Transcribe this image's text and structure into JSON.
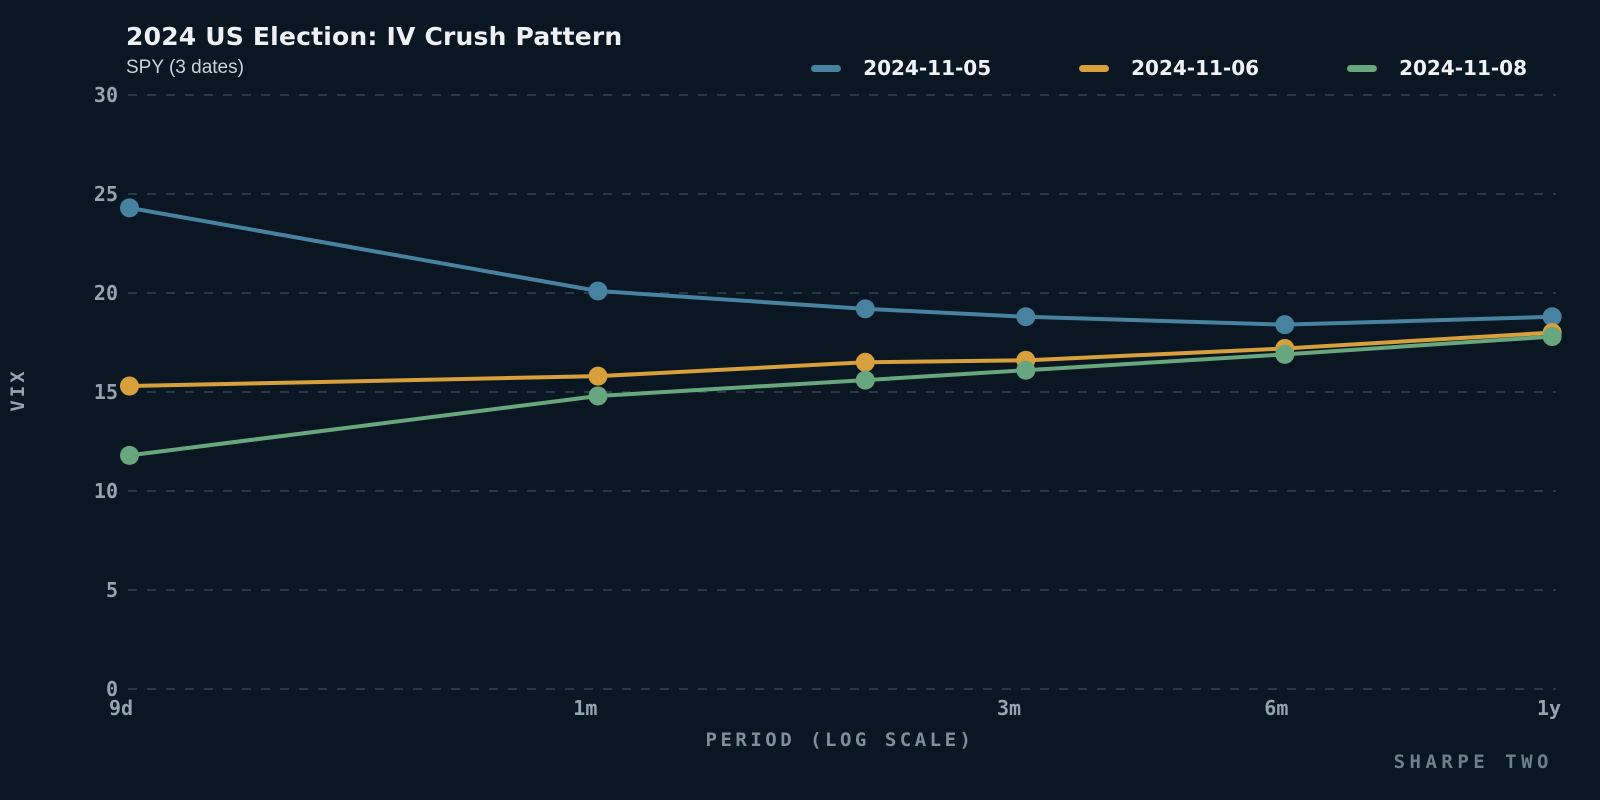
{
  "header": {
    "title": "2024 US Election: IV Crush Pattern",
    "subtitle": "SPY (3 dates)"
  },
  "watermark": "SHARPE TWO",
  "colors": {
    "background": "#0a1621",
    "grid": "#263a47",
    "tick_label": "#94a3ae",
    "axis_title": "#7f8f9a",
    "watermark": "#6e808b"
  },
  "chart_data": {
    "type": "line",
    "title": "2024 US Election: IV Crush Pattern",
    "subtitle": "SPY (3 dates)",
    "xlabel": "PERIOD (LOG SCALE)",
    "ylabel": "VIX",
    "x_scale": "log",
    "x_unit": "days-to-expiration",
    "x_days": [
      9.2,
      31,
      62,
      94,
      184,
      368
    ],
    "x_ticks": [
      {
        "days": 9,
        "label": "9d"
      },
      {
        "days": 30,
        "label": "1m"
      },
      {
        "days": 90,
        "label": "3m"
      },
      {
        "days": 180,
        "label": "6m"
      },
      {
        "days": 365,
        "label": "1y"
      }
    ],
    "ylim": [
      0,
      30
    ],
    "y_ticks": [
      0,
      5,
      10,
      15,
      20,
      25,
      30
    ],
    "grid": true,
    "legend_position": "top-right",
    "series": [
      {
        "name": "2024-11-05",
        "color": "#4783a0",
        "values": [
          24.3,
          20.1,
          19.2,
          18.8,
          18.4,
          18.8
        ]
      },
      {
        "name": "2024-11-06",
        "color": "#d7a03c",
        "values": [
          15.3,
          15.8,
          16.5,
          16.6,
          17.2,
          18.0
        ]
      },
      {
        "name": "2024-11-08",
        "color": "#68a67d",
        "values": [
          11.8,
          14.8,
          15.6,
          16.1,
          16.9,
          17.8
        ]
      }
    ]
  }
}
